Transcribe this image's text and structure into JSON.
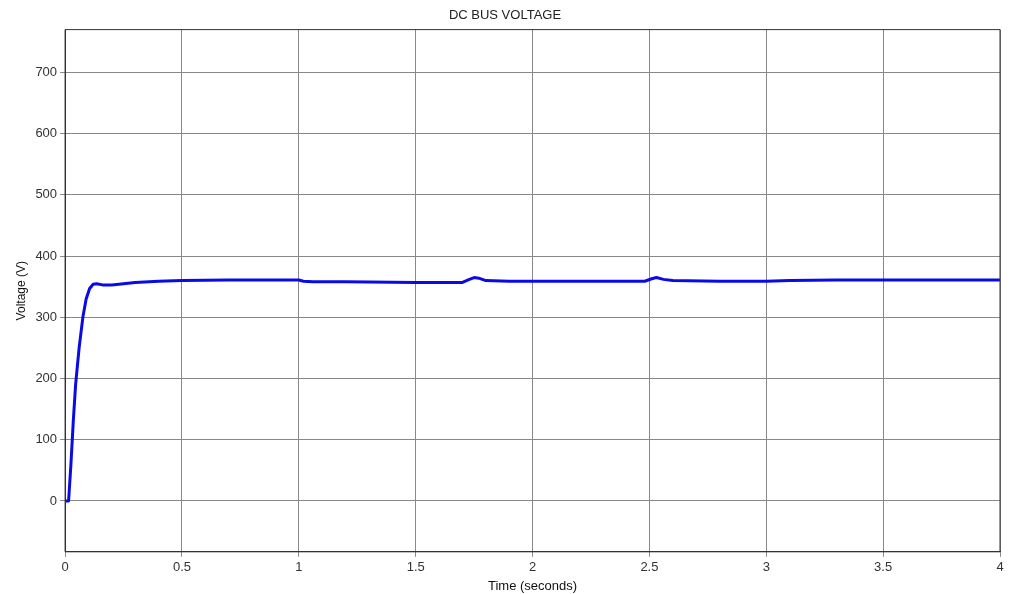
{
  "chart_data": {
    "type": "line",
    "title": "DC BUS VOLTAGE",
    "xlabel": "Time (seconds)",
    "ylabel": "Voltage (V)",
    "series": [
      {
        "color": "#0a0ae6",
        "x": [
          0,
          0.015,
          0.025,
          0.035,
          0.045,
          0.06,
          0.076,
          0.09,
          0.105,
          0.12,
          0.135,
          0.16,
          0.2,
          0.3,
          0.4,
          0.5,
          0.7,
          0.9,
          1.0,
          1.02,
          1.06,
          1.2,
          1.5,
          1.7,
          1.73,
          1.75,
          1.77,
          1.8,
          1.9,
          2.2,
          2.48,
          2.51,
          2.53,
          2.56,
          2.6,
          2.8,
          3.0,
          3.1,
          3.3,
          3.6,
          4.0
        ],
        "values": [
          0,
          0,
          60,
          130,
          190,
          250,
          300,
          330,
          347,
          354,
          355,
          353,
          353,
          357,
          359,
          360,
          361,
          361,
          361,
          359,
          358,
          358,
          357,
          357,
          362,
          365,
          364,
          360,
          359,
          359,
          359,
          363,
          365,
          362,
          360,
          359,
          359,
          360,
          361,
          361,
          361
        ]
      }
    ],
    "xlim": [
      0,
      4
    ],
    "ylim": [
      -83,
      770
    ],
    "xticks": [
      0,
      0.5,
      1,
      1.5,
      2,
      2.5,
      3,
      3.5,
      4
    ],
    "yticks": [
      0,
      100,
      200,
      300,
      400,
      500,
      600,
      700
    ],
    "grid": true,
    "marker": "none",
    "line_style": "solid"
  }
}
